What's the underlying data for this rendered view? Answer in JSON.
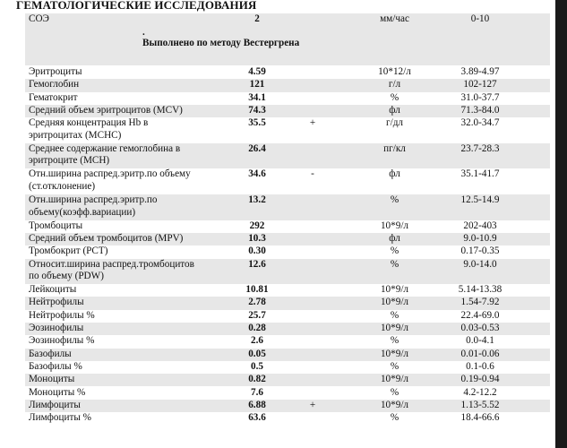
{
  "title": "ГЕМАТОЛОГИЧЕСКИЕ ИССЛЕДОВАНИЯ",
  "esr": {
    "name": "СОЭ",
    "value": "2",
    "unit": "мм/час",
    "ref": "0-10"
  },
  "method_dot": ".",
  "method": "Выполнено по методу Вестергрена",
  "rows": [
    {
      "name": "Эритроциты",
      "value": "4.59",
      "flag": "",
      "unit": "10*12/л",
      "ref": "3.89-4.97"
    },
    {
      "name": "Гемоглобин",
      "value": "121",
      "flag": "",
      "unit": "г/л",
      "ref": "102-127"
    },
    {
      "name": "Гематокрит",
      "value": "34.1",
      "flag": "",
      "unit": "%",
      "ref": "31.0-37.7"
    },
    {
      "name": "Средний объем эритроцитов (MCV)",
      "value": "74.3",
      "flag": "",
      "unit": "фл",
      "ref": "71.3-84.0"
    },
    {
      "name": "Средняя концентрация Hb в",
      "name2": "эритроцитах (MCHC)",
      "value": "35.5",
      "flag": "+",
      "unit": "г/дл",
      "ref": "32.0-34.7"
    },
    {
      "name": "Среднее содержание гемоглобина в",
      "name2": "эритроците (MCH)",
      "value": "26.4",
      "flag": "",
      "unit": "пг/кл",
      "ref": "23.7-28.3"
    },
    {
      "name": "Отн.ширина распред.эритр.по объему",
      "name2": "(ст.отклонение)",
      "value": "34.6",
      "flag": "-",
      "unit": "фл",
      "ref": "35.1-41.7"
    },
    {
      "name": "Отн.ширина распред.эритр.по",
      "name2": "объему(коэфф.вариации)",
      "value": "13.2",
      "flag": "",
      "unit": "%",
      "ref": "12.5-14.9"
    },
    {
      "name": "Тромбоциты",
      "value": "292",
      "flag": "",
      "unit": "10*9/л",
      "ref": "202-403"
    },
    {
      "name": "Средний объем тромбоцитов (MPV)",
      "value": "10.3",
      "flag": "",
      "unit": "фл",
      "ref": "9.0-10.9"
    },
    {
      "name": "Тромбокрит (PCT)",
      "value": "0.30",
      "flag": "",
      "unit": "%",
      "ref": "0.17-0.35"
    },
    {
      "name": "Относит.ширина распред.тромбоцитов",
      "name2": "по объему (PDW)",
      "value": "12.6",
      "flag": "",
      "unit": "%",
      "ref": "9.0-14.0"
    },
    {
      "name": "Лейкоциты",
      "value": "10.81",
      "flag": "",
      "unit": "10*9/л",
      "ref": "5.14-13.38"
    },
    {
      "name": "Нейтрофилы",
      "value": "2.78",
      "flag": "",
      "unit": "10*9/л",
      "ref": "1.54-7.92"
    },
    {
      "name": "Нейтрофилы %",
      "value": "25.7",
      "flag": "",
      "unit": "%",
      "ref": "22.4-69.0"
    },
    {
      "name": "Эозинофилы",
      "value": "0.28",
      "flag": "",
      "unit": "10*9/л",
      "ref": "0.03-0.53"
    },
    {
      "name": "Эозинофилы %",
      "value": "2.6",
      "flag": "",
      "unit": "%",
      "ref": "0.0-4.1"
    },
    {
      "name": "Базофилы",
      "value": "0.05",
      "flag": "",
      "unit": "10*9/л",
      "ref": "0.01-0.06"
    },
    {
      "name": "Базофилы %",
      "value": "0.5",
      "flag": "",
      "unit": "%",
      "ref": "0.1-0.6"
    },
    {
      "name": "Моноциты",
      "value": "0.82",
      "flag": "",
      "unit": "10*9/л",
      "ref": "0.19-0.94"
    },
    {
      "name": "Моноциты %",
      "value": "7.6",
      "flag": "",
      "unit": "%",
      "ref": "4.2-12.2"
    },
    {
      "name": "Лимфоциты",
      "value": "6.88",
      "flag": "+",
      "unit": "10*9/л",
      "ref": "1.13-5.52"
    },
    {
      "name": "Лимфоциты %",
      "value": "63.6",
      "flag": "",
      "unit": "%",
      "ref": "18.4-66.6"
    }
  ]
}
